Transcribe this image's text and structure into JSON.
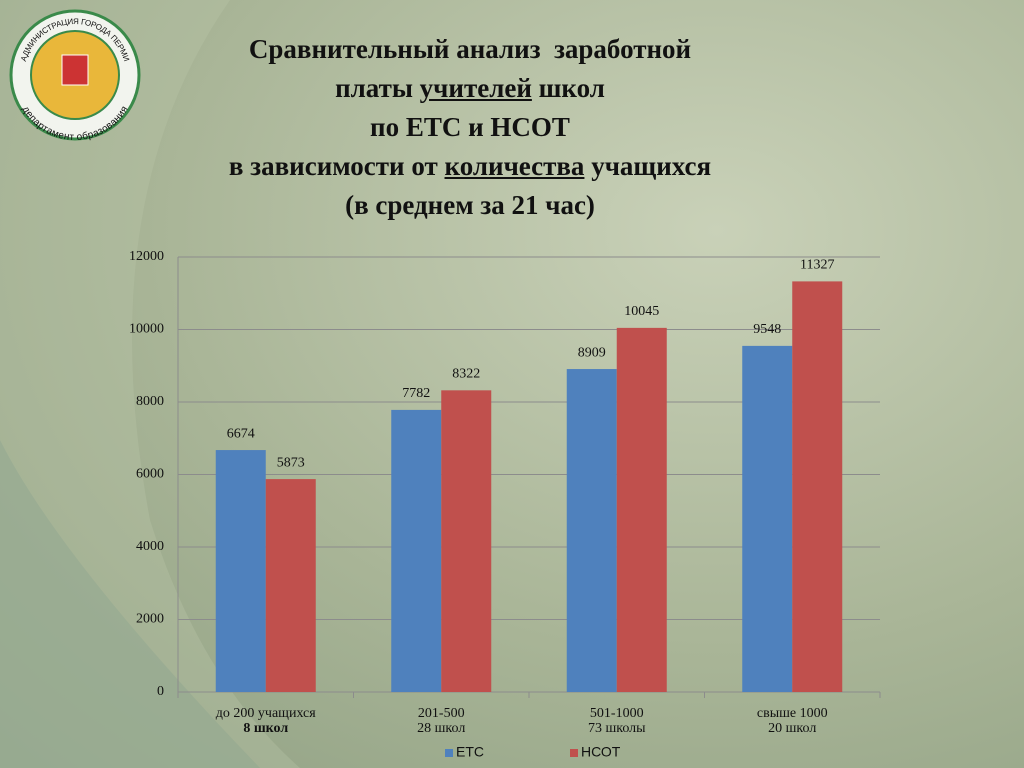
{
  "logo": {
    "ring_top": "АДМИНИСТРАЦИЯ ГОРОДА ПЕРМИ",
    "ring_bottom": "департамент образования"
  },
  "chart_data": {
    "type": "bar",
    "title_lines": [
      [
        {
          "text": "Сравнительный анализ  заработной"
        }
      ],
      [
        {
          "text": "платы "
        },
        {
          "text": "учителей",
          "underline": true
        },
        {
          "text": " школ"
        }
      ],
      [
        {
          "text": "по ЕТС и НСОТ"
        }
      ],
      [
        {
          "text": "в зависимости от "
        },
        {
          "text": "количества",
          "underline": true
        },
        {
          "text": " учащихся"
        }
      ],
      [
        {
          "text": "(в среднем за 21 час)"
        }
      ]
    ],
    "categories": [
      "до 200 учащихся",
      "201-500",
      "501-1000",
      "свыше 1000"
    ],
    "category_notes": [
      "8 школ",
      "28 школ",
      "73 школы",
      "20 школ"
    ],
    "series": [
      {
        "name": "ЕТС",
        "color": "#4f81bd",
        "values": [
          6674,
          7782,
          8909,
          9548
        ]
      },
      {
        "name": "НСОТ",
        "color": "#c0504d",
        "values": [
          5873,
          8322,
          10045,
          11327
        ]
      }
    ],
    "ylim": [
      0,
      12000
    ],
    "yticks": [
      0,
      2000,
      4000,
      6000,
      8000,
      10000,
      12000
    ],
    "grid": true,
    "legend": "bottom"
  }
}
